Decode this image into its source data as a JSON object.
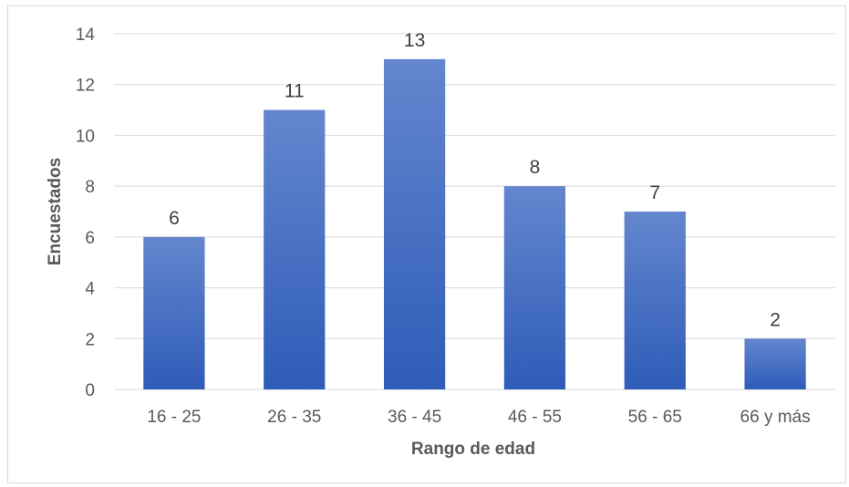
{
  "chart_data": {
    "type": "bar",
    "title": "",
    "xlabel": "Rango de edad",
    "ylabel": "Encuestados",
    "categories": [
      "16 - 25",
      "26 - 35",
      "36 - 45",
      "46 - 55",
      "56 - 65",
      "66 y más"
    ],
    "values": [
      6,
      11,
      13,
      8,
      7,
      2
    ],
    "ylim": [
      0,
      14
    ],
    "yticks": [
      0,
      2,
      4,
      6,
      8,
      10,
      12,
      14
    ],
    "grid": true,
    "data_labels": true,
    "legend": "none",
    "bar_color_top": "#6486ce",
    "bar_color_bottom": "#2e5cb8",
    "gridline_color": "#d9d9d9",
    "text_color": "#595959"
  }
}
